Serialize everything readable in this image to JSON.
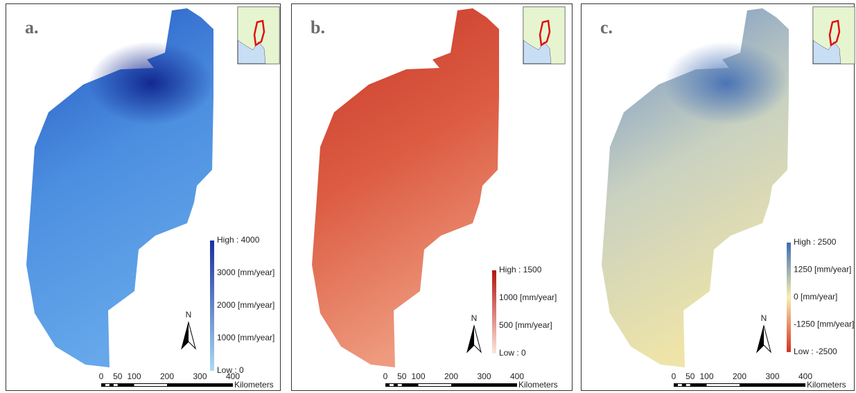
{
  "panels": [
    {
      "label": "a.",
      "legend": [
        "High : 4000",
        "3000 [mm/year]",
        "2000 [mm/year]",
        "1000 [mm/year]",
        "Low : 0"
      ],
      "ramp": [
        "#1b2f9e",
        "#a8dcf5"
      ],
      "north": "N",
      "scale": {
        "ticks": [
          0,
          50,
          100,
          200,
          300,
          400
        ],
        "unit": "Kilometers"
      }
    },
    {
      "label": "b.",
      "legend": [
        "High : 1500",
        "1000 [mm/year]",
        "500 [mm/year]",
        "Low : 0"
      ],
      "ramp": [
        "#b3140f",
        "#fde6dc"
      ],
      "north": "N",
      "scale": {
        "ticks": [
          0,
          50,
          100,
          200,
          300,
          400
        ],
        "unit": "Kilometers"
      }
    },
    {
      "label": "c.",
      "legend": [
        "High : 2500",
        "1250 [mm/year]",
        "0 [mm/year]",
        "-1250 [mm/year]",
        "Low : -2500"
      ],
      "ramp": [
        "#3d6cb5",
        "#f7efb0",
        "#d7301f"
      ],
      "north": "N",
      "scale": {
        "ticks": [
          0,
          50,
          100,
          200,
          300,
          400
        ],
        "unit": "Kilometers"
      }
    }
  ]
}
